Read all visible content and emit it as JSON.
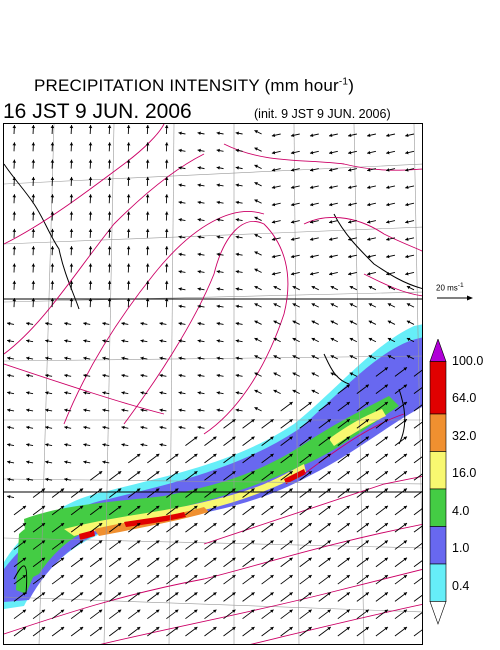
{
  "header": {
    "title_main": "PRECIPITATION INTENSITY (mm hour",
    "title_exp": "-1",
    "title_close": ")",
    "valid_time": "16 JST 9 JUN. 2006",
    "init_time": "(init. 9 JST 9 JUN. 2006)"
  },
  "reference_vector": {
    "label": "20 ms",
    "label_exp": "-1",
    "speed_ms": 20
  },
  "colorbar": {
    "levels": [
      "100.0",
      "64.0",
      "32.0",
      "16.0",
      "4.0",
      "1.0",
      "0.4"
    ],
    "bands": [
      {
        "range": "100.0+",
        "color": "#b000d8"
      },
      {
        "range": "64.0-100.0",
        "color": "#e00000"
      },
      {
        "range": "32.0-64.0",
        "color": "#f09030"
      },
      {
        "range": "16.0-32.0",
        "color": "#f8f870"
      },
      {
        "range": "4.0-16.0",
        "color": "#44cc44"
      },
      {
        "range": "1.0-4.0",
        "color": "#6868f0"
      },
      {
        "range": "0.4-1.0",
        "color": "#66eef8"
      },
      {
        "range": "below 0.4",
        "color": "#ffffff"
      }
    ]
  },
  "map": {
    "field": "precipitation intensity with wind vectors and magenta contours",
    "rain_band": "Baiu front along the southern coast of Japan from Kyushu to Kanto",
    "contour_color": "#cc0066"
  }
}
